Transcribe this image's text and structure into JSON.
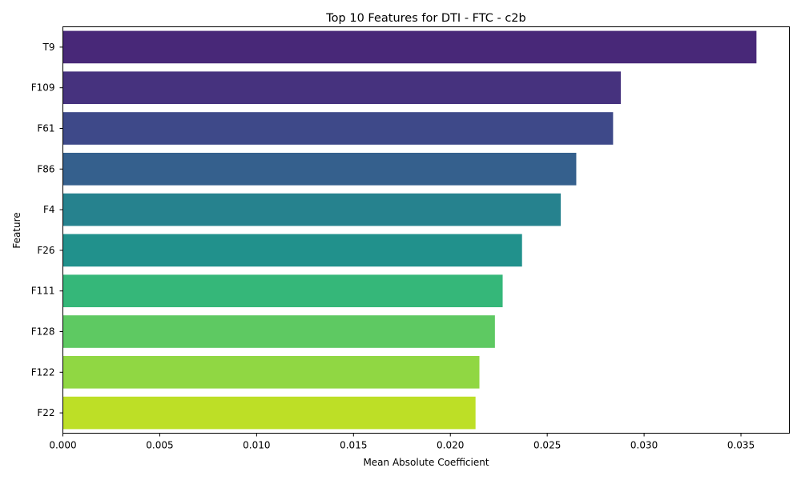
{
  "chart_data": {
    "type": "bar",
    "orientation": "horizontal",
    "title": "Top 10 Features for DTI - FTC - c2b",
    "xlabel": "Mean Absolute Coefficient",
    "ylabel": "Feature",
    "xlim": [
      0,
      0.0375
    ],
    "xticks": [
      0,
      0.005,
      0.01,
      0.015,
      0.02,
      0.025,
      0.03,
      0.035
    ],
    "xtick_labels": [
      "0.000",
      "0.005",
      "0.010",
      "0.015",
      "0.020",
      "0.025",
      "0.030",
      "0.035"
    ],
    "categories": [
      "T9",
      "F109",
      "F61",
      "F86",
      "F4",
      "F26",
      "F111",
      "F128",
      "F122",
      "F22"
    ],
    "values": [
      0.0358,
      0.0288,
      0.0284,
      0.0265,
      0.0257,
      0.0237,
      0.0227,
      0.0223,
      0.0215,
      0.0213
    ],
    "colors": [
      "#482878",
      "#46327e",
      "#3e4989",
      "#35608d",
      "#26828e",
      "#21918c",
      "#35b779",
      "#5ec962",
      "#90d743",
      "#bddf26"
    ],
    "grid": false,
    "legend": false
  }
}
